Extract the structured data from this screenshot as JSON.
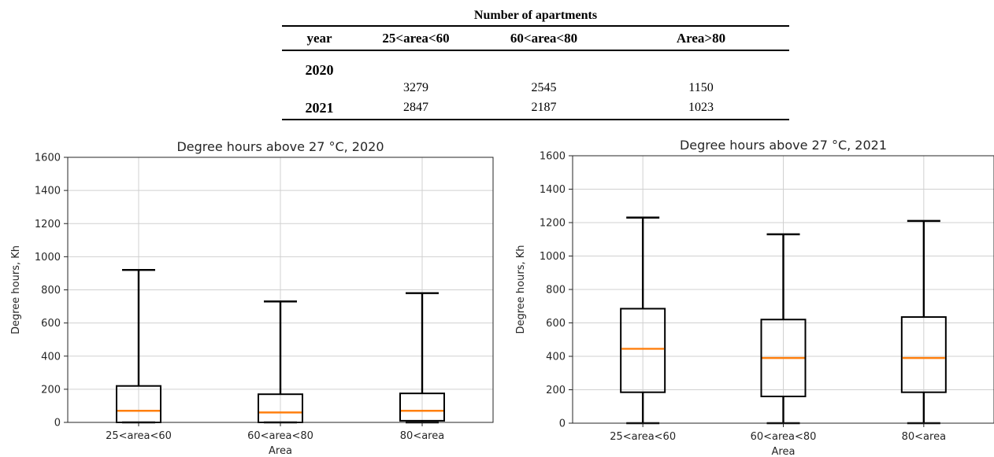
{
  "table": {
    "title": "Number of apartments",
    "headers": [
      "year",
      "25<area<60",
      "60<area<80",
      "Area>80"
    ],
    "rows": [
      [
        "2020",
        "3279",
        "2545",
        "1150"
      ],
      [
        "2021",
        "2847",
        "2187",
        "1023"
      ]
    ]
  },
  "chart_data": [
    {
      "type": "box",
      "title": "Degree hours above 27 °C, 2020",
      "xlabel": "Area",
      "ylabel": "Degree hours, Kh",
      "categories": [
        "25<area<60",
        "60<area<80",
        "80<area"
      ],
      "ylim": [
        0,
        1600
      ],
      "yticks": [
        0,
        200,
        400,
        600,
        800,
        1000,
        1200,
        1400,
        1600
      ],
      "grid": true,
      "boxes": [
        {
          "whisker_low": 0,
          "q1": 0,
          "median": 70,
          "q3": 220,
          "whisker_high": 920
        },
        {
          "whisker_low": 0,
          "q1": 0,
          "median": 60,
          "q3": 170,
          "whisker_high": 730
        },
        {
          "whisker_low": 0,
          "q1": 10,
          "median": 70,
          "q3": 175,
          "whisker_high": 780
        }
      ],
      "colors": {
        "box": "#000000",
        "median": "#ff7f0e",
        "grid": "#d0d0d0"
      }
    },
    {
      "type": "box",
      "title": "Degree hours above 27 °C, 2021",
      "xlabel": "Area",
      "ylabel": "Degree hours, Kh",
      "categories": [
        "25<area<60",
        "60<area<80",
        "80<area"
      ],
      "ylim": [
        0,
        1600
      ],
      "yticks": [
        0,
        200,
        400,
        600,
        800,
        1000,
        1200,
        1400,
        1600
      ],
      "grid": true,
      "boxes": [
        {
          "whisker_low": 0,
          "q1": 185,
          "median": 445,
          "q3": 685,
          "whisker_high": 1230
        },
        {
          "whisker_low": 0,
          "q1": 160,
          "median": 390,
          "q3": 620,
          "whisker_high": 1130
        },
        {
          "whisker_low": 0,
          "q1": 185,
          "median": 390,
          "q3": 635,
          "whisker_high": 1210
        }
      ],
      "colors": {
        "box": "#000000",
        "median": "#ff7f0e",
        "grid": "#d0d0d0"
      }
    }
  ]
}
